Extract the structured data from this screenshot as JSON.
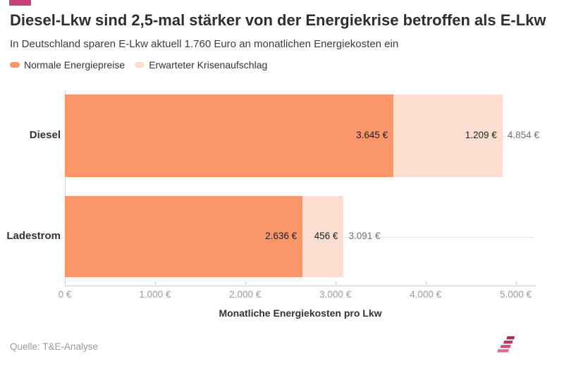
{
  "header": {
    "title": "Diesel-Lkw sind 2,5-mal stärker von der Energiekrise betroffen als E-Lkw",
    "subtitle": "In Deutschland sparen E-Lkw aktuell 1.760 Euro an monatlichen Energiekosten ein"
  },
  "legend": [
    {
      "label": "Normale Energiepreise",
      "color": "#f9976b"
    },
    {
      "label": "Erwarteter Krisenaufschlag",
      "color": "#fbdecf"
    }
  ],
  "chart_data": {
    "type": "bar",
    "orientation": "horizontal",
    "stacked": true,
    "categories": [
      "Diesel",
      "Ladestrom"
    ],
    "series": [
      {
        "name": "Normale Energiepreise",
        "color": "#f9976b",
        "values": [
          3645,
          2636
        ],
        "value_labels": [
          "3.645 €",
          "2.636 €"
        ]
      },
      {
        "name": "Erwarteter Krisenaufschlag",
        "color": "#fbdecf",
        "values": [
          1209,
          456
        ],
        "value_labels": [
          "1.209 €",
          "456 €"
        ]
      }
    ],
    "totals": [
      4854,
      3091
    ],
    "total_labels": [
      "4.854 €",
      "3.091 €"
    ],
    "xlabel": "Monatliche Energiekosten pro Lkw",
    "xlim": [
      0,
      5000
    ],
    "xticks": [
      0,
      1000,
      2000,
      3000,
      4000,
      5000
    ],
    "xtick_labels": [
      "0 €",
      "1.000 €",
      "2.000 €",
      "3.000 €",
      "4.000 €",
      "5.000 €"
    ],
    "grid": "horizontal-category-lines",
    "legend_position": "top-left"
  },
  "footer": {
    "source": "Quelle: T&E-Analyse",
    "logo_parts": [
      "T",
      "&",
      "E"
    ]
  },
  "colors": {
    "badge": "#c9407a",
    "logo_magenta": "#c53a72",
    "logo_orange": "#f78c52",
    "logo_stripes": [
      "#992f5e",
      "#b23a6d",
      "#cc4b80",
      "#e0688f"
    ]
  }
}
